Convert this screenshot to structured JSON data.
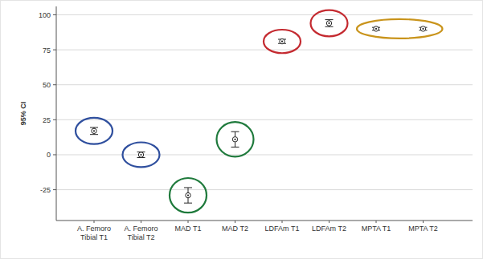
{
  "chart_data": {
    "type": "errorbar",
    "y_label": "95% CI",
    "categories": [
      "A. Femoro Tibial T1",
      "A. Femoro Tibial T2",
      "MAD T1",
      "MAD T2",
      "LDFAm T1",
      "LDFAm T2",
      "MPTA T1",
      "MPTA T2"
    ],
    "values": [
      17,
      0,
      -29,
      11,
      81,
      94,
      90,
      90
    ],
    "errors": [
      2.5,
      2,
      5.5,
      5.5,
      1.5,
      2.5,
      1,
      1
    ],
    "ylim": [
      -47,
      106
    ],
    "yticks": [
      -25,
      0,
      25,
      50,
      75,
      100
    ],
    "grid": true
  }
}
